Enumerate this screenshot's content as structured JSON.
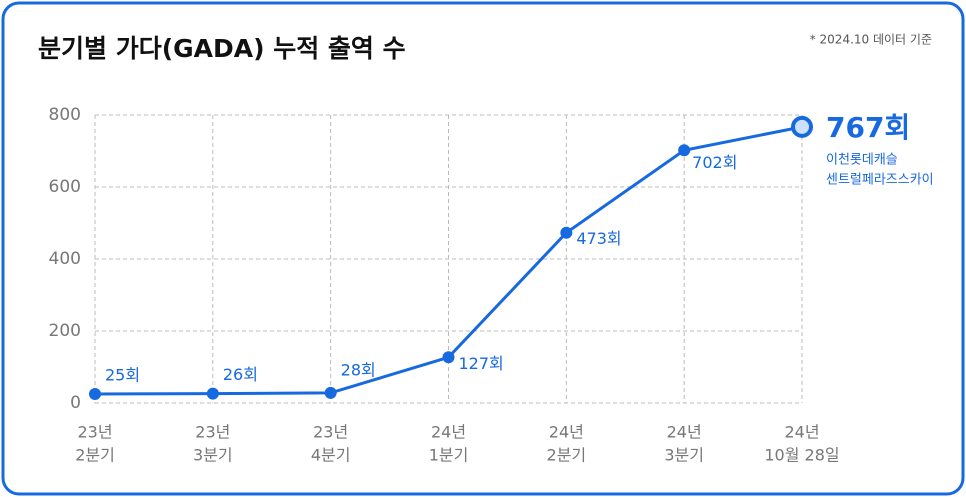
{
  "chart_data": {
    "type": "line",
    "title": "분기별 가다(GADA) 누적 출역 수",
    "note": "* 2024.10 데이터 기준",
    "categories": [
      [
        "23년",
        "2분기"
      ],
      [
        "23년",
        "3분기"
      ],
      [
        "23년",
        "4분기"
      ],
      [
        "24년",
        "1분기"
      ],
      [
        "24년",
        "2분기"
      ],
      [
        "24년",
        "3분기"
      ],
      [
        "24년",
        "10월 28일"
      ]
    ],
    "values": [
      25,
      26,
      28,
      127,
      473,
      702,
      767
    ],
    "value_labels": [
      "25회",
      "26회",
      "28회",
      "127회",
      "473회",
      "702회",
      "767회"
    ],
    "annotation": [
      "이천롯데캐슬",
      "센트럴페라즈스카이"
    ],
    "color": "#1769e0",
    "ylim": [
      0,
      800
    ],
    "yticks": [
      0,
      200,
      400,
      600,
      800
    ],
    "grid": true
  }
}
